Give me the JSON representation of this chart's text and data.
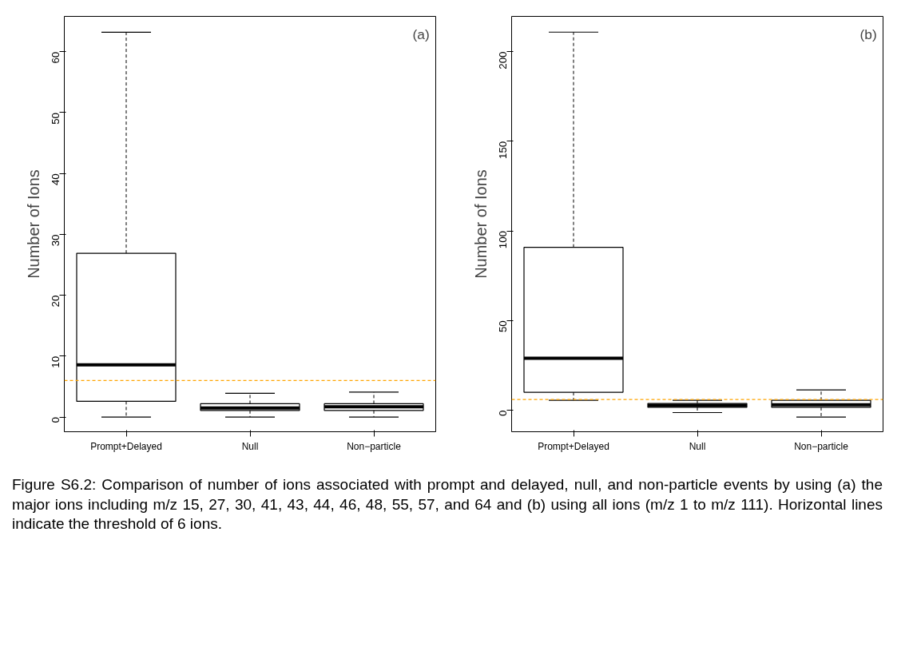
{
  "chart_data": [
    {
      "type": "box",
      "ylabel": "Number of Ions",
      "categories": [
        "Prompt+Delayed",
        "Null",
        "Non−particle"
      ],
      "boxes": [
        {
          "low": 0,
          "q1": 2.6,
          "median": 8.6,
          "q3": 26.9,
          "high": 63.2
        },
        {
          "low": 0,
          "q1": 1.1,
          "median": 1.5,
          "q3": 2.2,
          "high": 3.9
        },
        {
          "low": 0,
          "q1": 1.1,
          "median": 1.7,
          "q3": 2.2,
          "high": 4.1
        }
      ],
      "ylim": [
        -2.4,
        65.8
      ],
      "yticks": [
        0,
        10,
        20,
        30,
        40,
        50,
        60
      ],
      "grid": false,
      "ref_lines": [
        {
          "axis": "y",
          "value": 6,
          "label": null,
          "color": "#ffa500",
          "line_style": "dashed"
        }
      ],
      "annotations": [
        "(a)"
      ]
    },
    {
      "type": "box",
      "ylabel": "Number of Ions",
      "categories": [
        "Prompt+Delayed",
        "Null",
        "Non−particle"
      ],
      "boxes": [
        {
          "low": 5.5,
          "q1": 10,
          "median": 29,
          "q3": 90.8,
          "high": 210.8
        },
        {
          "low": -1.3,
          "q1": 1.6,
          "median": 2.7,
          "q3": 3.8,
          "high": 5.5
        },
        {
          "low": -3.8,
          "q1": 1.6,
          "median": 3,
          "q3": 5.5,
          "high": 11.3
        }
      ],
      "ylim": [
        -12,
        219.6
      ],
      "yticks": [
        0,
        50,
        100,
        150,
        200
      ],
      "grid": false,
      "ref_lines": [
        {
          "axis": "y",
          "value": 6,
          "label": null,
          "color": "#ffa500",
          "line_style": "dashed"
        }
      ],
      "annotations": [
        "(b)",
        "Figure S6.2: Comparison of number of ions associated with prompt and delayed, null, and non-particle events by using (a) the major ions including m/z 15, 27, 30, 41, 43, 44, 46, 48, 55, 57, and 64 and (b) using all ions (m/z 1 to m/z 111). Horizontal lines indicate the threshold of 6 ions."
      ]
    }
  ]
}
